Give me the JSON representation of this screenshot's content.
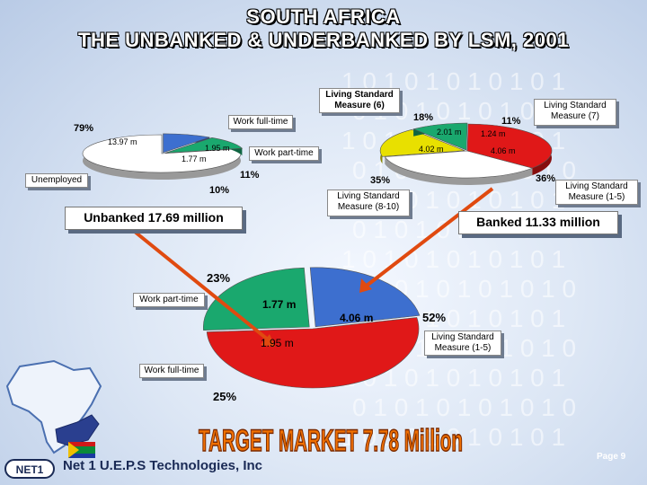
{
  "title_line1": "SOUTH AFRICA",
  "title_line2": "THE UNBANKED & UNDERBANKED BY LSM, 2001",
  "footer": {
    "company": "Net 1 U.E.P.S Technologies, Inc",
    "logo": "NET1",
    "page": "Page 9"
  },
  "target_market": "TARGET MARKET 7.78 Million",
  "colors": {
    "green": "#1aa86e",
    "blue": "#3d6fcf",
    "red": "#e01818",
    "yellow": "#e8e000",
    "white": "#ffffff"
  },
  "chart_data": [
    {
      "type": "pie",
      "name": "unbanked",
      "total_label": "Unbanked 17.69 million",
      "slices": [
        {
          "label": "Unemployed",
          "value": 13.97,
          "value_label": "13.97 m",
          "percent_label": "79%"
        },
        {
          "label": "Work part-time",
          "value": 1.77,
          "value_label": "1.77 m",
          "percent_label": "10%"
        },
        {
          "label": "Work full-time",
          "value": 1.95,
          "value_label": "1.95 m",
          "percent_label": "11%"
        }
      ]
    },
    {
      "type": "pie",
      "name": "banked",
      "total_label": "Banked 11.33 million",
      "slices": [
        {
          "label": "Living Standard Measure (8-10)",
          "value": 4.02,
          "value_label": "4.02 m",
          "percent_label": "35%"
        },
        {
          "label": "Living Standard Measure (6)",
          "value": 2.01,
          "value_label": "2.01 m",
          "percent_label": "18%"
        },
        {
          "label": "Living Standard Measure (7)",
          "value": 1.24,
          "value_label": "1.24 m",
          "percent_label": "11%"
        },
        {
          "label": "Living Standard Measure (1-5)",
          "value": 4.06,
          "value_label": "4.06 m",
          "percent_label": "36%"
        }
      ]
    },
    {
      "type": "pie",
      "name": "target-market",
      "slices": [
        {
          "label": "Work part-time",
          "value": 1.77,
          "value_label": "1.77 m",
          "percent_label": "23%"
        },
        {
          "label": "Living Standard Measure (1-5)",
          "value": 4.06,
          "value_label": "4.06 m",
          "percent_label": "52%"
        },
        {
          "label": "Work full-time",
          "value": 1.95,
          "value_label": "1.95 m",
          "percent_label": "25%"
        }
      ]
    }
  ]
}
